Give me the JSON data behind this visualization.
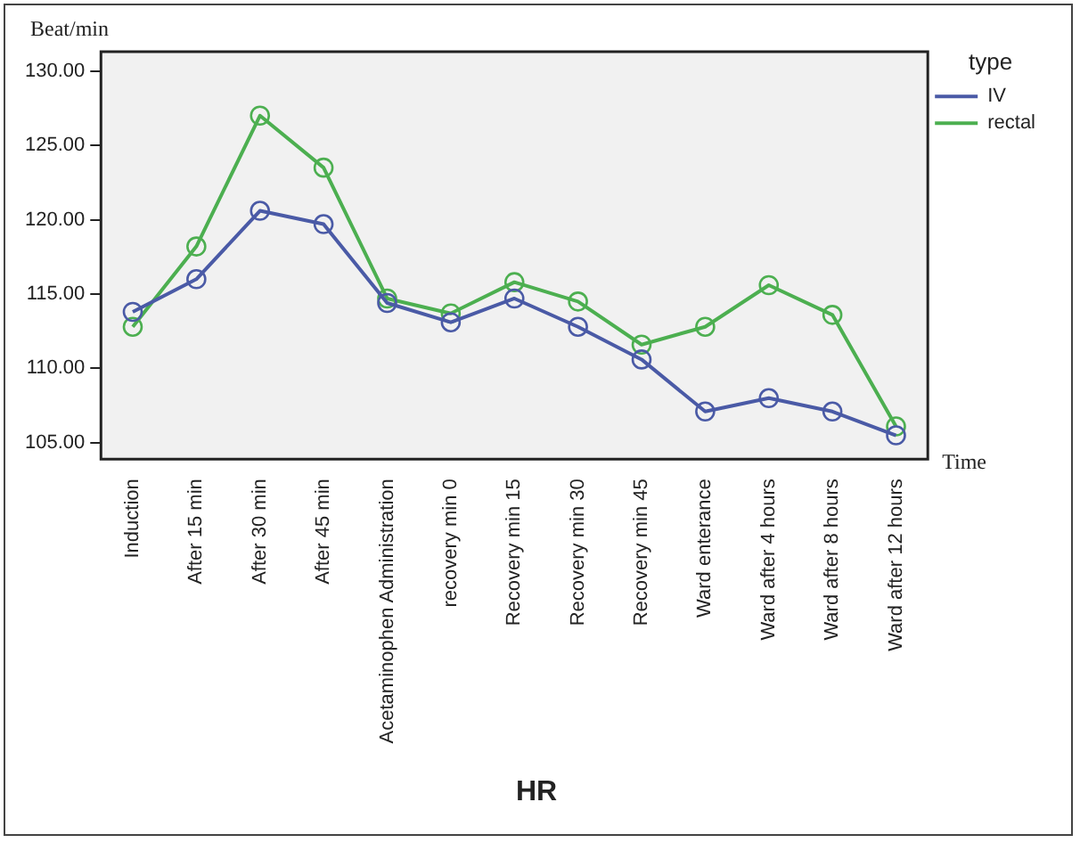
{
  "chart_data": {
    "type": "line",
    "title": "HR",
    "xlabel": "Time",
    "ylabel": "Beat/min",
    "legend_title": "type",
    "categories": [
      "Induction",
      "After 15 min",
      "After 30 min",
      "After 45 min",
      "Acetaminophen Administration",
      "recovery min 0",
      "Recovery min 15",
      "Recovery min 30",
      "Recovery min 45",
      "Ward enterance",
      "Ward after 4 hours",
      "Ward after 8 hours",
      "Ward after 12 hours"
    ],
    "series": [
      {
        "name": "IV",
        "color": "#4a5aa6",
        "values": [
          113.8,
          116.0,
          120.6,
          119.7,
          114.4,
          113.1,
          114.7,
          112.8,
          110.6,
          107.1,
          108.0,
          107.1,
          105.5
        ]
      },
      {
        "name": "rectal",
        "color": "#4caf50",
        "values": [
          112.8,
          118.2,
          127.0,
          123.5,
          114.7,
          113.7,
          115.8,
          114.5,
          111.6,
          112.8,
          115.6,
          113.6,
          106.1
        ]
      }
    ],
    "ylim": [
      103.9,
      131.3
    ],
    "yticks": [
      {
        "value": 105,
        "label": "105.00"
      },
      {
        "value": 110,
        "label": "110.00"
      },
      {
        "value": 115,
        "label": "115.00"
      },
      {
        "value": 120,
        "label": "120.00"
      },
      {
        "value": 125,
        "label": "125.00"
      },
      {
        "value": 130,
        "label": "130.00"
      }
    ],
    "grid": false,
    "legend": "top right",
    "marker": "circle",
    "line_style": "solid"
  }
}
